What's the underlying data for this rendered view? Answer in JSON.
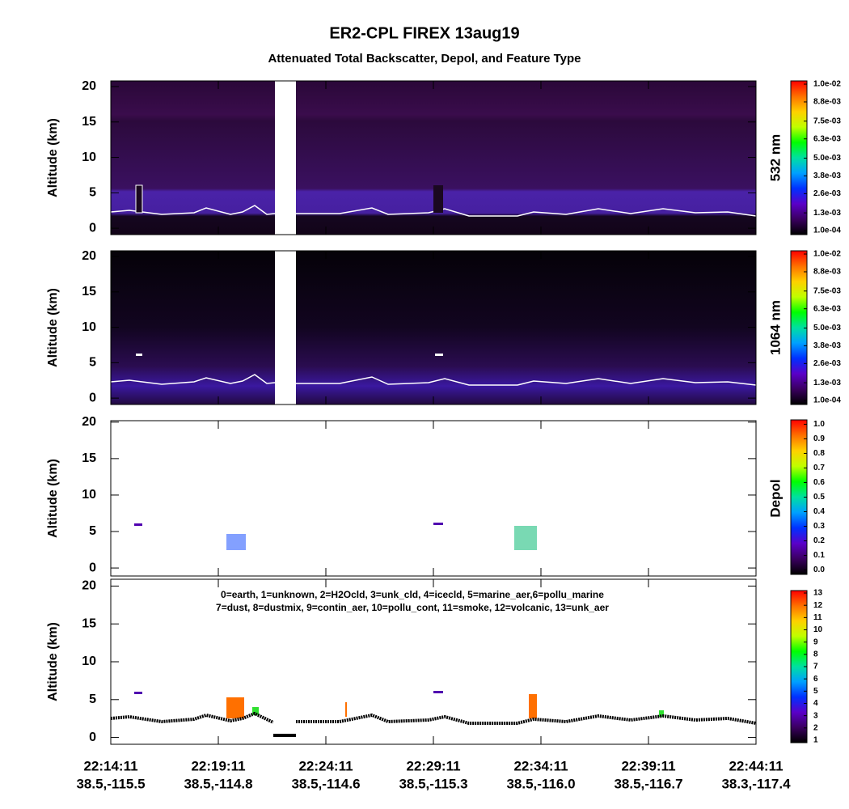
{
  "chart_data": [
    {
      "type": "heatmap",
      "title": "ER2-CPL FIREX 13aug19",
      "subtitle": "Attenuated Total Backscatter, Depol, and Feature Type",
      "ylabel": "Altitude (km)",
      "ylim": [
        -0.9,
        20.8
      ],
      "yticks": [
        0,
        5,
        10,
        15,
        20
      ],
      "colorbar_label": "532 nm",
      "clim": [
        -0.00017,
        0.01022
      ],
      "cticks": [
        {
          "value": 0.0001,
          "label": "1.0e-04"
        },
        {
          "value": 0.0013,
          "label": "1.3e-03"
        },
        {
          "value": 0.0026,
          "label": "2.6e-03"
        },
        {
          "value": 0.0038,
          "label": "3.8e-03"
        },
        {
          "value": 0.005,
          "label": "5.0e-03"
        },
        {
          "value": 0.0063,
          "label": "6.3e-03"
        },
        {
          "value": 0.0075,
          "label": "7.5e-03"
        },
        {
          "value": 0.0088,
          "label": "8.8e-03"
        },
        {
          "value": 0.01,
          "label": "1.0e-02"
        }
      ],
      "colormap": [
        "#000000",
        "#3a0060",
        "#5a00c8",
        "#0030ff",
        "#00a0ff",
        "#00e0a0",
        "#00ff00",
        "#c0ff00",
        "#ffd000",
        "#ff7000",
        "#ff0000"
      ]
    },
    {
      "type": "heatmap",
      "ylabel": "Altitude (km)",
      "ylim": [
        -0.9,
        20.8
      ],
      "yticks": [
        0,
        5,
        10,
        15,
        20
      ],
      "colorbar_label": "1064 nm",
      "clim": [
        -0.00017,
        0.01022
      ],
      "cticks": [
        {
          "value": 0.0001,
          "label": "1.0e-04"
        },
        {
          "value": 0.0013,
          "label": "1.3e-03"
        },
        {
          "value": 0.0026,
          "label": "2.6e-03"
        },
        {
          "value": 0.0038,
          "label": "3.8e-03"
        },
        {
          "value": 0.005,
          "label": "5.0e-03"
        },
        {
          "value": 0.0063,
          "label": "6.3e-03"
        },
        {
          "value": 0.0075,
          "label": "7.5e-03"
        },
        {
          "value": 0.0088,
          "label": "8.8e-03"
        },
        {
          "value": 0.01,
          "label": "1.0e-02"
        }
      ],
      "colormap": [
        "#000000",
        "#3a0060",
        "#5a00c8",
        "#0030ff",
        "#00a0ff",
        "#00e0a0",
        "#00ff00",
        "#c0ff00",
        "#ffd000",
        "#ff7000",
        "#ff0000"
      ]
    },
    {
      "type": "heatmap",
      "ylabel": "Altitude (km)",
      "ylim": [
        -1.1,
        20.2
      ],
      "yticks": [
        0,
        5,
        10,
        15,
        20
      ],
      "colorbar_label": "Depol",
      "clim": [
        -0.03,
        1.03
      ],
      "cticks": [
        {
          "value": 0,
          "label": "0.0"
        },
        {
          "value": 0.1,
          "label": "0.1"
        },
        {
          "value": 0.2,
          "label": "0.2"
        },
        {
          "value": 0.3,
          "label": "0.3"
        },
        {
          "value": 0.4,
          "label": "0.4"
        },
        {
          "value": 0.5,
          "label": "0.5"
        },
        {
          "value": 0.6,
          "label": "0.6"
        },
        {
          "value": 0.7,
          "label": "0.7"
        },
        {
          "value": 0.8,
          "label": "0.8"
        },
        {
          "value": 0.9,
          "label": "0.9"
        },
        {
          "value": 1,
          "label": "1.0"
        }
      ],
      "colormap": [
        "#000000",
        "#3a0060",
        "#5a00c8",
        "#0030ff",
        "#00a0ff",
        "#00e0a0",
        "#00ff00",
        "#c0ff00",
        "#ffd000",
        "#ff7000",
        "#ff0000"
      ]
    },
    {
      "type": "heatmap",
      "ylabel": "Altitude (km)",
      "ylim": [
        -0.9,
        20.9
      ],
      "yticks": [
        0,
        5,
        10,
        15,
        20
      ],
      "clim": [
        0.8,
        13.2
      ],
      "cticks": [
        1,
        2,
        3,
        4,
        5,
        6,
        7,
        8,
        9,
        10,
        11,
        12,
        13
      ],
      "colormap": [
        "#000000",
        "#3a0060",
        "#5a00c8",
        "#0030ff",
        "#00a0ff",
        "#00e0a0",
        "#00ff00",
        "#c0ff00",
        "#ffd000",
        "#ff7000",
        "#ff0000"
      ],
      "annotations": [
        "0=earth, 1=unknown, 2=H2Ocld, 3=unk_cld, 4=icecld, 5=marine_aer,6=pollu_marine",
        "7=dust, 8=dustmix, 9=contin_aer, 10=pollu_cont, 11=smoke, 12=volcanic, 13=unk_aer"
      ],
      "xlim": [
        0,
        30
      ],
      "xticks": [
        {
          "value": 0,
          "label": "22:14:11"
        },
        {
          "value": 5,
          "label": "22:19:11"
        },
        {
          "value": 10,
          "label": "22:24:11"
        },
        {
          "value": 15,
          "label": "22:29:11"
        },
        {
          "value": 20,
          "label": "22:34:11"
        },
        {
          "value": 25,
          "label": "22:39:11"
        },
        {
          "value": 30,
          "label": "22:44:11"
        }
      ],
      "xtick_locations": [
        "38.5,-115.5",
        "38.5,-114.8",
        "38.5,-114.6",
        "38.5,-115.3",
        "38.5,-116.0",
        "38.5,-116.7",
        "38.3,-117.4"
      ]
    }
  ]
}
